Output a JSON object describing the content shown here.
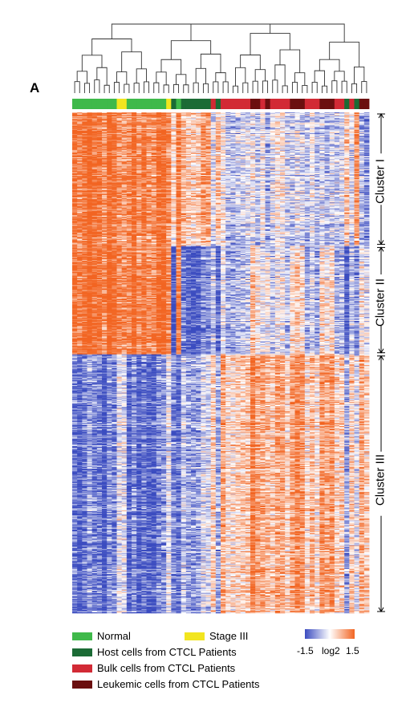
{
  "panel_label": "A",
  "chart_data": {
    "type": "heatmap",
    "title": "",
    "colorscale": {
      "min": -1.5,
      "max": 1.5,
      "label": "log2",
      "low_color": "#3b4cc0",
      "mid_color": "#ffffff",
      "high_color": "#f26522"
    },
    "sample_groups": [
      {
        "name": "Normal",
        "color": "#3fb94a",
        "count": 9
      },
      {
        "name": "Stage III",
        "color": "#f2e51f",
        "count": 2
      },
      {
        "name": "Normal",
        "color": "#3fb94a",
        "count": 8
      },
      {
        "name": "Stage III",
        "color": "#f2e51f",
        "count": 1
      },
      {
        "name": "Host cells from CTCL Patients",
        "color": "#1b6b35",
        "count": 1
      },
      {
        "name": "Normal",
        "color": "#3fb94a",
        "count": 1
      },
      {
        "name": "Host cells from CTCL Patients",
        "color": "#1b6b35",
        "count": 6
      },
      {
        "name": "Bulk cells from CTCL Patients",
        "color": "#d22a35",
        "count": 1
      },
      {
        "name": "Host cells from CTCL Patients",
        "color": "#1b6b35",
        "count": 1
      },
      {
        "name": "Bulk cells from CTCL Patients",
        "color": "#d22a35",
        "count": 6
      },
      {
        "name": "Leukemic cells from CTCL Patients",
        "color": "#6b0f0f",
        "count": 2
      },
      {
        "name": "Bulk cells from CTCL Patients",
        "color": "#d22a35",
        "count": 1
      },
      {
        "name": "Leukemic cells from CTCL Patients",
        "color": "#6b0f0f",
        "count": 1
      },
      {
        "name": "Bulk cells from CTCL Patients",
        "color": "#d22a35",
        "count": 4
      },
      {
        "name": "Leukemic cells from CTCL Patients",
        "color": "#6b0f0f",
        "count": 3
      },
      {
        "name": "Bulk cells from CTCL Patients",
        "color": "#d22a35",
        "count": 3
      },
      {
        "name": "Leukemic cells from CTCL Patients",
        "color": "#6b0f0f",
        "count": 3
      },
      {
        "name": "Bulk cells from CTCL Patients",
        "color": "#d22a35",
        "count": 2
      },
      {
        "name": "Host cells from CTCL Patients",
        "color": "#1b6b35",
        "count": 1
      },
      {
        "name": "Bulk cells from CTCL Patients",
        "color": "#d22a35",
        "count": 1
      },
      {
        "name": "Host cells from CTCL Patients",
        "color": "#1b6b35",
        "count": 1
      },
      {
        "name": "Leukemic cells from CTCL Patients",
        "color": "#6b0f0f",
        "count": 2
      }
    ],
    "clusters": [
      {
        "name": "Cluster I",
        "gene_rows": 160
      },
      {
        "name": "Cluster II",
        "gene_rows": 130
      },
      {
        "name": "Cluster III",
        "gene_rows": 310
      }
    ],
    "block_pattern": [
      {
        "cluster": "Cluster I",
        "Normal": 1.3,
        "Stage III": 0.8,
        "Host": 0.6,
        "Bulk": -0.2,
        "Leukemic": -0.5
      },
      {
        "cluster": "Cluster II",
        "Normal": 1.4,
        "Stage III": 0.9,
        "Host": -1.3,
        "Bulk": -0.4,
        "Leukemic": 0.2
      },
      {
        "cluster": "Cluster III",
        "Normal": -1.2,
        "Stage III": -0.4,
        "Host": -0.6,
        "Bulk": 0.6,
        "Leukemic": 0.9
      }
    ],
    "legend": [
      {
        "label": "Normal",
        "color": "#3fb94a"
      },
      {
        "label": "Stage III",
        "color": "#f2e51f"
      },
      {
        "label": "Host cells from CTCL Patients",
        "color": "#1b6b35"
      },
      {
        "label": "Bulk cells from CTCL Patients",
        "color": "#d22a35"
      },
      {
        "label": "Leukemic cells from CTCL Patients",
        "color": "#6b0f0f"
      }
    ],
    "colorbar_ticks": [
      "-1.5",
      "log2",
      "1.5"
    ]
  }
}
